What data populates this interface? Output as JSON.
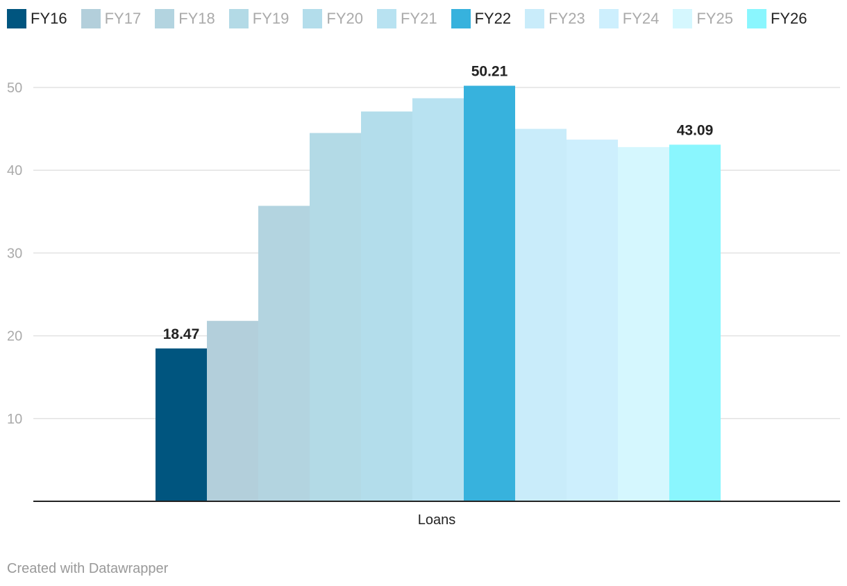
{
  "footer": "Created with Datawrapper",
  "chart_data": {
    "type": "bar",
    "title": "",
    "xlabel": "",
    "ylabel": "",
    "categories": [
      "Loans"
    ],
    "ylim": [
      0,
      52
    ],
    "yticks": [
      10,
      20,
      30,
      40,
      50
    ],
    "grid": true,
    "legend_position": "top-left",
    "series": [
      {
        "name": "FY16",
        "values": [
          18.47
        ],
        "color": "#00557f",
        "highlighted": true,
        "show_label": true
      },
      {
        "name": "FY17",
        "values": [
          21.8
        ],
        "color": "#b3cfdb",
        "highlighted": false,
        "show_label": false
      },
      {
        "name": "FY18",
        "values": [
          35.7
        ],
        "color": "#b3d4e0",
        "highlighted": false,
        "show_label": false
      },
      {
        "name": "FY19",
        "values": [
          44.5
        ],
        "color": "#b3dae6",
        "highlighted": false,
        "show_label": false
      },
      {
        "name": "FY20",
        "values": [
          47.1
        ],
        "color": "#b3ddeb",
        "highlighted": false,
        "show_label": false
      },
      {
        "name": "FY21",
        "values": [
          48.7
        ],
        "color": "#b8e2f1",
        "highlighted": false,
        "show_label": false
      },
      {
        "name": "FY22",
        "values": [
          50.21
        ],
        "color": "#37b2dd",
        "highlighted": true,
        "show_label": true
      },
      {
        "name": "FY23",
        "values": [
          45.0
        ],
        "color": "#c9ecfa",
        "highlighted": false,
        "show_label": false
      },
      {
        "name": "FY24",
        "values": [
          43.7
        ],
        "color": "#cdeffd",
        "highlighted": false,
        "show_label": false
      },
      {
        "name": "FY25",
        "values": [
          42.8
        ],
        "color": "#d5f7fe",
        "highlighted": false,
        "show_label": false
      },
      {
        "name": "FY26",
        "values": [
          43.09
        ],
        "color": "#8af6fe",
        "highlighted": true,
        "show_label": true
      }
    ]
  }
}
